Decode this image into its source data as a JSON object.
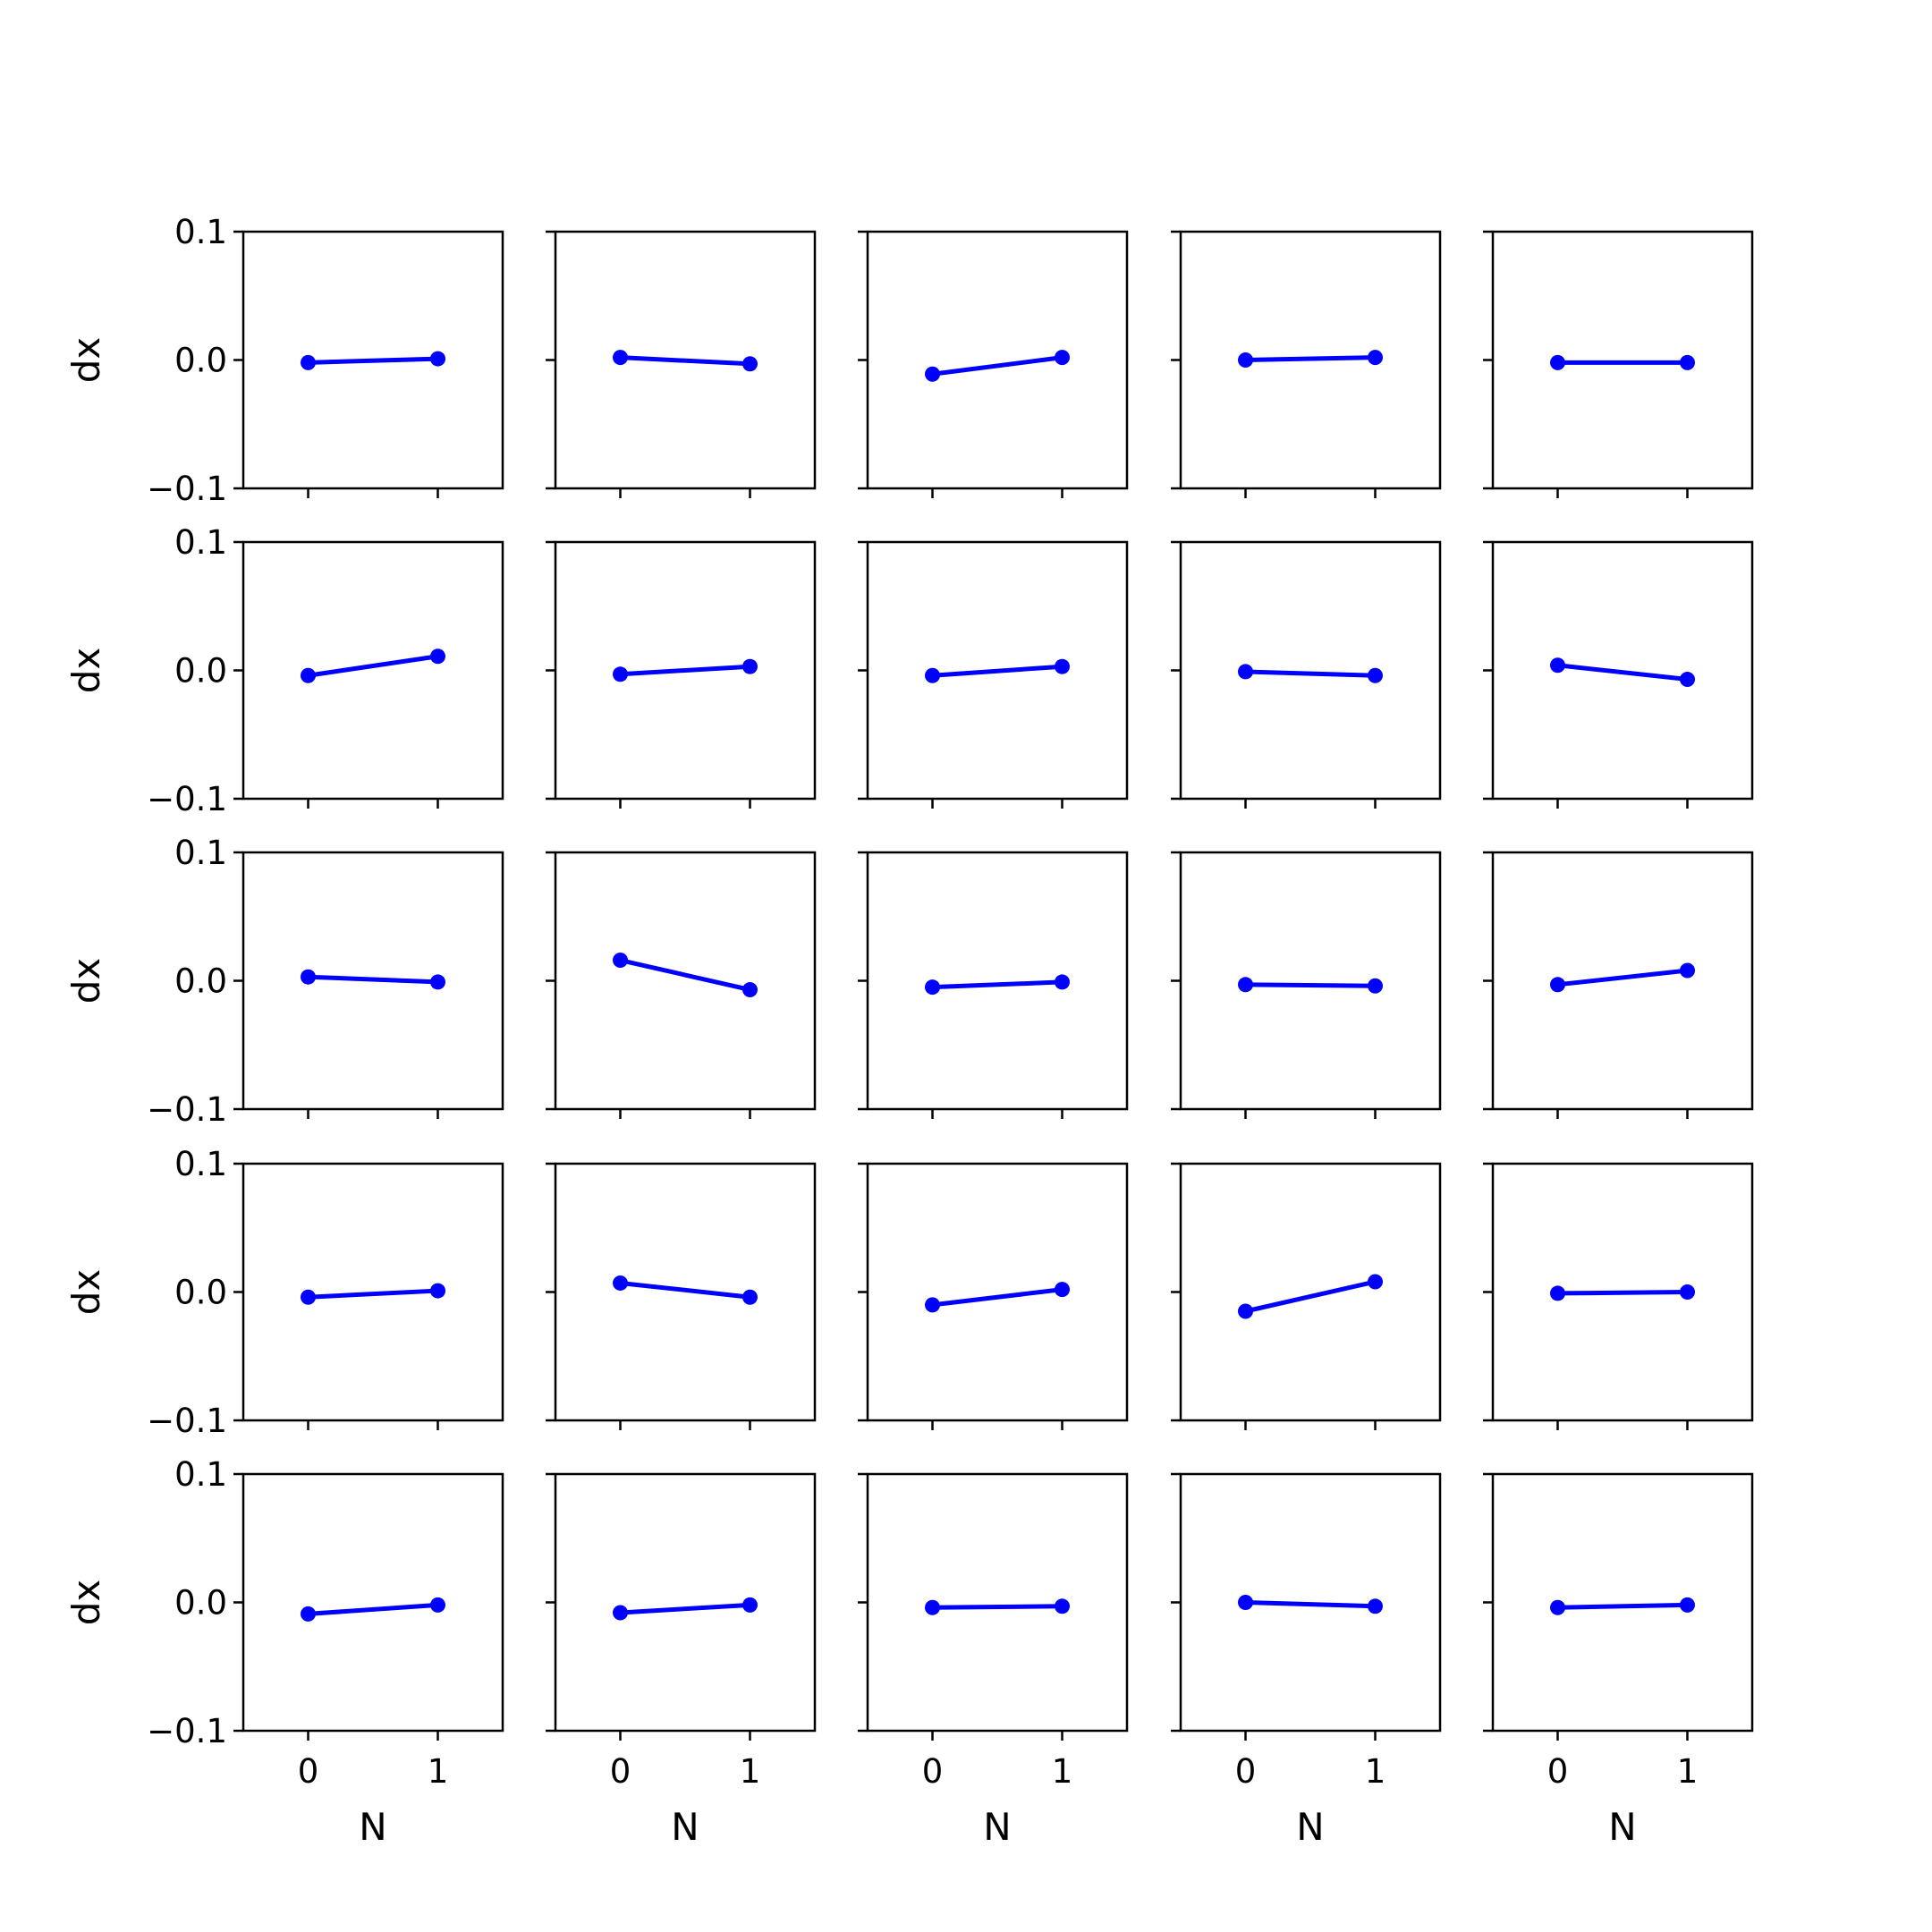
{
  "figure": {
    "line_color": "#0000ff",
    "axis_color": "#000000",
    "background": "#ffffff",
    "rows": 5,
    "cols": 5
  },
  "chart_data": [
    {
      "type": "line",
      "row": 0,
      "col": 0,
      "x": [
        0,
        1
      ],
      "y": [
        -0.002,
        0.001
      ],
      "ylabel": "dx",
      "xlabel": "",
      "ylim": [
        -0.1,
        0.1
      ],
      "xlim": [
        -0.5,
        1.5
      ],
      "yticks": [
        "0.1",
        "0.0",
        "−0.1"
      ],
      "xticks": []
    },
    {
      "type": "line",
      "row": 0,
      "col": 1,
      "x": [
        0,
        1
      ],
      "y": [
        0.002,
        -0.003
      ],
      "ylabel": "",
      "xlabel": "",
      "ylim": [
        -0.1,
        0.1
      ],
      "xlim": [
        -0.5,
        1.5
      ],
      "yticks": [],
      "xticks": []
    },
    {
      "type": "line",
      "row": 0,
      "col": 2,
      "x": [
        0,
        1
      ],
      "y": [
        -0.011,
        0.002
      ],
      "ylabel": "",
      "xlabel": "",
      "ylim": [
        -0.1,
        0.1
      ],
      "xlim": [
        -0.5,
        1.5
      ],
      "yticks": [],
      "xticks": []
    },
    {
      "type": "line",
      "row": 0,
      "col": 3,
      "x": [
        0,
        1
      ],
      "y": [
        0.0,
        0.002
      ],
      "ylabel": "",
      "xlabel": "",
      "ylim": [
        -0.1,
        0.1
      ],
      "xlim": [
        -0.5,
        1.5
      ],
      "yticks": [],
      "xticks": []
    },
    {
      "type": "line",
      "row": 0,
      "col": 4,
      "x": [
        0,
        1
      ],
      "y": [
        -0.002,
        -0.002
      ],
      "ylabel": "",
      "xlabel": "",
      "ylim": [
        -0.1,
        0.1
      ],
      "xlim": [
        -0.5,
        1.5
      ],
      "yticks": [],
      "xticks": []
    },
    {
      "type": "line",
      "row": 1,
      "col": 0,
      "x": [
        0,
        1
      ],
      "y": [
        -0.004,
        0.011
      ],
      "ylabel": "dx",
      "xlabel": "",
      "ylim": [
        -0.1,
        0.1
      ],
      "xlim": [
        -0.5,
        1.5
      ],
      "yticks": [
        "0.1",
        "0.0",
        "−0.1"
      ],
      "xticks": []
    },
    {
      "type": "line",
      "row": 1,
      "col": 1,
      "x": [
        0,
        1
      ],
      "y": [
        -0.003,
        0.003
      ],
      "ylabel": "",
      "xlabel": "",
      "ylim": [
        -0.1,
        0.1
      ],
      "xlim": [
        -0.5,
        1.5
      ],
      "yticks": [],
      "xticks": []
    },
    {
      "type": "line",
      "row": 1,
      "col": 2,
      "x": [
        0,
        1
      ],
      "y": [
        -0.004,
        0.003
      ],
      "ylabel": "",
      "xlabel": "",
      "ylim": [
        -0.1,
        0.1
      ],
      "xlim": [
        -0.5,
        1.5
      ],
      "yticks": [],
      "xticks": []
    },
    {
      "type": "line",
      "row": 1,
      "col": 3,
      "x": [
        0,
        1
      ],
      "y": [
        -0.001,
        -0.004
      ],
      "ylabel": "",
      "xlabel": "",
      "ylim": [
        -0.1,
        0.1
      ],
      "xlim": [
        -0.5,
        1.5
      ],
      "yticks": [],
      "xticks": []
    },
    {
      "type": "line",
      "row": 1,
      "col": 4,
      "x": [
        0,
        1
      ],
      "y": [
        0.004,
        -0.007
      ],
      "ylabel": "",
      "xlabel": "",
      "ylim": [
        -0.1,
        0.1
      ],
      "xlim": [
        -0.5,
        1.5
      ],
      "yticks": [],
      "xticks": []
    },
    {
      "type": "line",
      "row": 2,
      "col": 0,
      "x": [
        0,
        1
      ],
      "y": [
        0.003,
        -0.001
      ],
      "ylabel": "dx",
      "xlabel": "",
      "ylim": [
        -0.1,
        0.1
      ],
      "xlim": [
        -0.5,
        1.5
      ],
      "yticks": [
        "0.1",
        "0.0",
        "−0.1"
      ],
      "xticks": []
    },
    {
      "type": "line",
      "row": 2,
      "col": 1,
      "x": [
        0,
        1
      ],
      "y": [
        0.016,
        -0.007
      ],
      "ylabel": "",
      "xlabel": "",
      "ylim": [
        -0.1,
        0.1
      ],
      "xlim": [
        -0.5,
        1.5
      ],
      "yticks": [],
      "xticks": []
    },
    {
      "type": "line",
      "row": 2,
      "col": 2,
      "x": [
        0,
        1
      ],
      "y": [
        -0.005,
        -0.001
      ],
      "ylabel": "",
      "xlabel": "",
      "ylim": [
        -0.1,
        0.1
      ],
      "xlim": [
        -0.5,
        1.5
      ],
      "yticks": [],
      "xticks": []
    },
    {
      "type": "line",
      "row": 2,
      "col": 3,
      "x": [
        0,
        1
      ],
      "y": [
        -0.003,
        -0.004
      ],
      "ylabel": "",
      "xlabel": "",
      "ylim": [
        -0.1,
        0.1
      ],
      "xlim": [
        -0.5,
        1.5
      ],
      "yticks": [],
      "xticks": []
    },
    {
      "type": "line",
      "row": 2,
      "col": 4,
      "x": [
        0,
        1
      ],
      "y": [
        -0.003,
        0.008
      ],
      "ylabel": "",
      "xlabel": "",
      "ylim": [
        -0.1,
        0.1
      ],
      "xlim": [
        -0.5,
        1.5
      ],
      "yticks": [],
      "xticks": []
    },
    {
      "type": "line",
      "row": 3,
      "col": 0,
      "x": [
        0,
        1
      ],
      "y": [
        -0.004,
        0.001
      ],
      "ylabel": "dx",
      "xlabel": "",
      "ylim": [
        -0.1,
        0.1
      ],
      "xlim": [
        -0.5,
        1.5
      ],
      "yticks": [
        "0.1",
        "0.0",
        "−0.1"
      ],
      "xticks": []
    },
    {
      "type": "line",
      "row": 3,
      "col": 1,
      "x": [
        0,
        1
      ],
      "y": [
        0.007,
        -0.004
      ],
      "ylabel": "",
      "xlabel": "",
      "ylim": [
        -0.1,
        0.1
      ],
      "xlim": [
        -0.5,
        1.5
      ],
      "yticks": [],
      "xticks": []
    },
    {
      "type": "line",
      "row": 3,
      "col": 2,
      "x": [
        0,
        1
      ],
      "y": [
        -0.01,
        0.002
      ],
      "ylabel": "",
      "xlabel": "",
      "ylim": [
        -0.1,
        0.1
      ],
      "xlim": [
        -0.5,
        1.5
      ],
      "yticks": [],
      "xticks": []
    },
    {
      "type": "line",
      "row": 3,
      "col": 3,
      "x": [
        0,
        1
      ],
      "y": [
        -0.015,
        0.008
      ],
      "ylabel": "",
      "xlabel": "",
      "ylim": [
        -0.1,
        0.1
      ],
      "xlim": [
        -0.5,
        1.5
      ],
      "yticks": [],
      "xticks": []
    },
    {
      "type": "line",
      "row": 3,
      "col": 4,
      "x": [
        0,
        1
      ],
      "y": [
        -0.001,
        0.0
      ],
      "ylabel": "",
      "xlabel": "",
      "ylim": [
        -0.1,
        0.1
      ],
      "xlim": [
        -0.5,
        1.5
      ],
      "yticks": [],
      "xticks": []
    },
    {
      "type": "line",
      "row": 4,
      "col": 0,
      "x": [
        0,
        1
      ],
      "y": [
        -0.009,
        -0.002
      ],
      "ylabel": "dx",
      "xlabel": "N",
      "ylim": [
        -0.1,
        0.1
      ],
      "xlim": [
        -0.5,
        1.5
      ],
      "yticks": [
        "0.1",
        "0.0",
        "−0.1"
      ],
      "xticks": [
        "0",
        "1"
      ]
    },
    {
      "type": "line",
      "row": 4,
      "col": 1,
      "x": [
        0,
        1
      ],
      "y": [
        -0.008,
        -0.002
      ],
      "ylabel": "",
      "xlabel": "N",
      "ylim": [
        -0.1,
        0.1
      ],
      "xlim": [
        -0.5,
        1.5
      ],
      "yticks": [],
      "xticks": [
        "0",
        "1"
      ]
    },
    {
      "type": "line",
      "row": 4,
      "col": 2,
      "x": [
        0,
        1
      ],
      "y": [
        -0.004,
        -0.003
      ],
      "ylabel": "",
      "xlabel": "N",
      "ylim": [
        -0.1,
        0.1
      ],
      "xlim": [
        -0.5,
        1.5
      ],
      "yticks": [],
      "xticks": [
        "0",
        "1"
      ]
    },
    {
      "type": "line",
      "row": 4,
      "col": 3,
      "x": [
        0,
        1
      ],
      "y": [
        0.0,
        -0.003
      ],
      "ylabel": "",
      "xlabel": "N",
      "ylim": [
        -0.1,
        0.1
      ],
      "xlim": [
        -0.5,
        1.5
      ],
      "yticks": [],
      "xticks": [
        "0",
        "1"
      ]
    },
    {
      "type": "line",
      "row": 4,
      "col": 4,
      "x": [
        0,
        1
      ],
      "y": [
        -0.004,
        -0.002
      ],
      "ylabel": "",
      "xlabel": "N",
      "ylim": [
        -0.1,
        0.1
      ],
      "xlim": [
        -0.5,
        1.5
      ],
      "yticks": [],
      "xticks": [
        "0",
        "1"
      ]
    }
  ]
}
